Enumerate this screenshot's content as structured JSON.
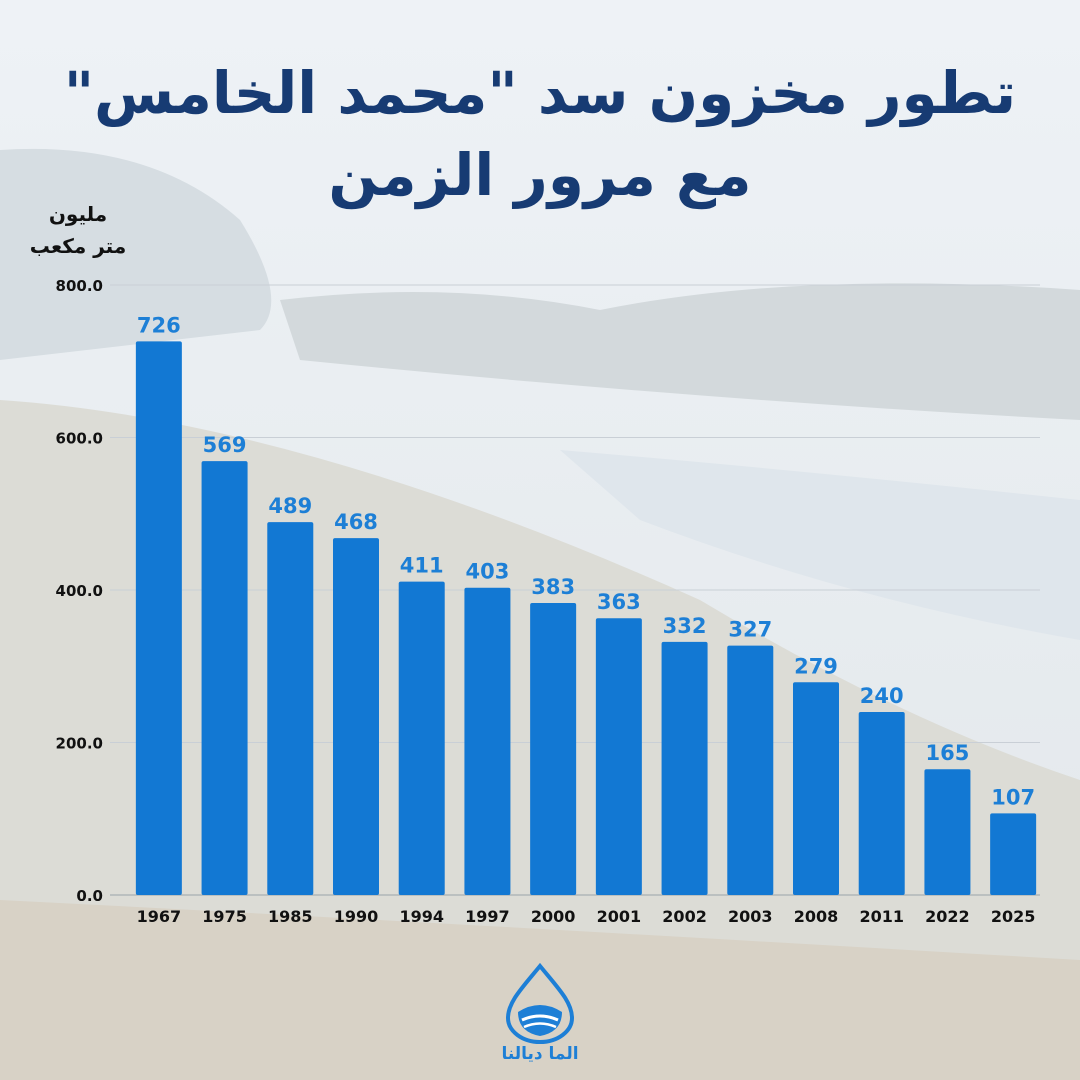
{
  "title_line1": "تطور مخزون سد \"محمد الخامس\"",
  "title_line2": "مع مرور الزمن",
  "unit_line1": "مليون",
  "unit_line2": "متر مكعب",
  "logo_text": "الما ديالنا",
  "colors": {
    "bar": "#1278d3",
    "label": "#1d7fd6",
    "title": "#173b73",
    "axis": "#111111"
  },
  "chart_data": {
    "type": "bar",
    "categories": [
      "1967",
      "1975",
      "1985",
      "1990",
      "1994",
      "1997",
      "2000",
      "2001",
      "2002",
      "2003",
      "2008",
      "2011",
      "2022",
      "2025"
    ],
    "values": [
      726,
      569,
      489,
      468,
      411,
      403,
      383,
      363,
      332,
      327,
      279,
      240,
      165,
      107
    ],
    "ylim": [
      0,
      800
    ],
    "yticks": [
      "0.0",
      "200.0",
      "400.0",
      "600.0",
      "800.0"
    ],
    "ytick_values": [
      0,
      200,
      400,
      600,
      800
    ],
    "grid": true,
    "title": "تطور مخزون سد \"محمد الخامس\" مع مرور الزمن",
    "ylabel": "مليون متر مكعب",
    "xlabel": ""
  }
}
